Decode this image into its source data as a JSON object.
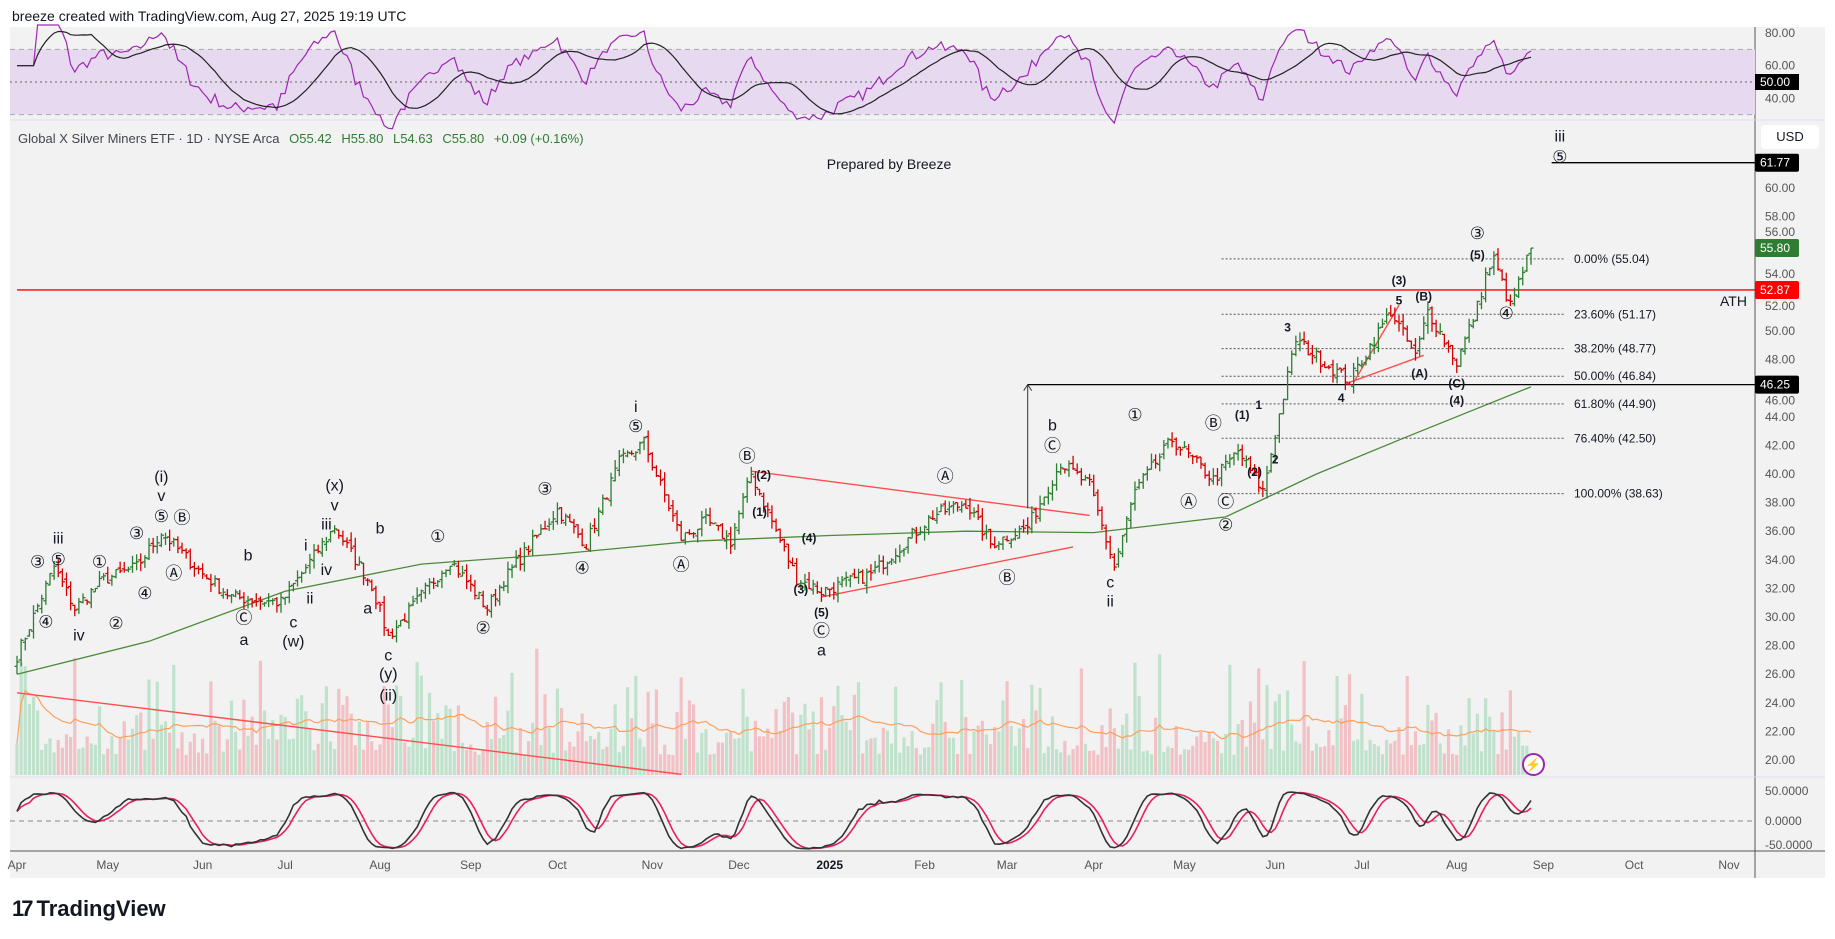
{
  "header": {
    "credit": "breeze created with TradingView.com, Aug 27, 2025 19:19 UTC"
  },
  "brand": {
    "name": "TradingView",
    "logo_icon": "tradingview-logo-icon"
  },
  "symbol": {
    "name": "Global X Silver Miners ETF · 1D · NYSE Arca",
    "open": "O55.42",
    "high": "H55.80",
    "low": "L54.63",
    "close": "C55.80",
    "change": "+0.09 (+0.16%)"
  },
  "currency_button": "USD",
  "note": "Prepared by Breeze",
  "colors": {
    "up": "#2e7d32",
    "down": "#d50000",
    "sma": "#4c8a3a",
    "rsi": "#9c27b0",
    "rsi_band": "#e6d9f0",
    "fib": "#555555",
    "ath": "#ff0000",
    "volume_ma": "#ff9f5a",
    "osc_k": "#333333",
    "osc_d": "#e91e63"
  },
  "chart_data": {
    "type": "ohlc-bar",
    "price_axis": {
      "ticks": [
        "60.00",
        "58.00",
        "56.00",
        "54.00",
        "52.00",
        "50.00",
        "48.00",
        "46.00",
        "44.00",
        "42.00",
        "40.00",
        "38.00",
        "36.00",
        "34.00",
        "32.00",
        "30.00",
        "28.00",
        "26.00",
        "24.00",
        "22.00",
        "20.00"
      ],
      "range": [
        19.5,
        63.8
      ]
    },
    "price_badges": [
      {
        "label": "61.77",
        "value": 61.77,
        "color": "#000000"
      },
      {
        "label": "55.80",
        "value": 55.8,
        "color": "#2e7d32"
      },
      {
        "label": "52.87",
        "value": 52.87,
        "color": "#ff0000"
      },
      {
        "label": "46.25",
        "value": 46.25,
        "color": "#000000"
      }
    ],
    "x_axis": {
      "ticks": [
        "Apr",
        "May",
        "Jun",
        "Jul",
        "Aug",
        "Sep",
        "Oct",
        "Nov",
        "Dec",
        "2025",
        "Feb",
        "Mar",
        "Apr",
        "May",
        "Jun",
        "Jul",
        "Aug",
        "Sep",
        "Oct",
        "Nov"
      ],
      "start": "2024-04-01",
      "end": "2025-08-27"
    },
    "last_bar": {
      "date": "2025-08-27",
      "open": 55.42,
      "high": 55.8,
      "low": 54.63,
      "close": 55.8
    },
    "close_path": [
      [
        "2024-04-01",
        27.3
      ],
      [
        "2024-04-12",
        33.5
      ],
      [
        "2024-04-19",
        30.6
      ],
      [
        "2024-04-30",
        32.6
      ],
      [
        "2024-05-10",
        33.5
      ],
      [
        "2024-05-20",
        35.9
      ],
      [
        "2024-06-03",
        33.0
      ],
      [
        "2024-06-12",
        31.4
      ],
      [
        "2024-06-28",
        31.0
      ],
      [
        "2024-07-17",
        36.3
      ],
      [
        "2024-07-30",
        32.2
      ],
      [
        "2024-08-05",
        28.6
      ],
      [
        "2024-08-26",
        34.0
      ],
      [
        "2024-09-06",
        30.6
      ],
      [
        "2024-09-12",
        32.6
      ],
      [
        "2024-10-01",
        37.5
      ],
      [
        "2024-10-10",
        35.1
      ],
      [
        "2024-10-22",
        40.8
      ],
      [
        "2024-10-30",
        42.2
      ],
      [
        "2024-11-12",
        35.5
      ],
      [
        "2024-11-20",
        36.7
      ],
      [
        "2024-11-28",
        35.3
      ],
      [
        "2024-12-05",
        40.0
      ],
      [
        "2024-12-20",
        32.7
      ],
      [
        "2024-12-30",
        31.8
      ],
      [
        "2025-01-15",
        33.0
      ],
      [
        "2025-02-05",
        37.1
      ],
      [
        "2025-02-15",
        38.0
      ],
      [
        "2025-02-25",
        35.1
      ],
      [
        "2025-03-10",
        36.3
      ],
      [
        "2025-03-20",
        40.8
      ],
      [
        "2025-03-31",
        39.2
      ],
      [
        "2025-04-08",
        33.5
      ],
      [
        "2025-04-15",
        38.8
      ],
      [
        "2025-04-28",
        42.4
      ],
      [
        "2025-05-10",
        39.6
      ],
      [
        "2025-05-20",
        41.6
      ],
      [
        "2025-05-28",
        38.8
      ],
      [
        "2025-06-05",
        46.8
      ],
      [
        "2025-06-09",
        49.4
      ],
      [
        "2025-06-16",
        48.2
      ],
      [
        "2025-06-26",
        46.5
      ],
      [
        "2025-07-10",
        51.4
      ],
      [
        "2025-07-18",
        48.2
      ],
      [
        "2025-07-23",
        51.4
      ],
      [
        "2025-08-01",
        47.8
      ],
      [
        "2025-08-08",
        51.7
      ],
      [
        "2025-08-12",
        53.9
      ],
      [
        "2025-08-14",
        55.0
      ],
      [
        "2025-08-20",
        51.7
      ],
      [
        "2025-08-27",
        55.8
      ]
    ],
    "sma_path": [
      [
        "2024-04-01",
        26.0
      ],
      [
        "2024-05-15",
        28.3
      ],
      [
        "2024-07-01",
        31.8
      ],
      [
        "2024-08-15",
        33.7
      ],
      [
        "2024-10-01",
        34.4
      ],
      [
        "2024-11-15",
        35.3
      ],
      [
        "2025-01-01",
        35.7
      ],
      [
        "2025-02-15",
        36.0
      ],
      [
        "2025-04-01",
        35.9
      ],
      [
        "2025-05-15",
        37.0
      ],
      [
        "2025-06-15",
        40.0
      ],
      [
        "2025-07-15",
        42.5
      ],
      [
        "2025-08-27",
        46.1
      ]
    ],
    "horizontal_lines": [
      {
        "label": "ATH",
        "value": 52.87,
        "from": "2024-04-01",
        "color": "#ff0000"
      },
      {
        "label": "",
        "value": 46.25,
        "from": "2025-03-10",
        "color": "#000000"
      },
      {
        "label": "",
        "value": 61.77,
        "from": "2025-09-03",
        "color": "#000000"
      }
    ],
    "fibonacci": {
      "from": "2025-05-14",
      "to": "2025-09-08",
      "levels": [
        {
          "label": "0.00% (55.04)",
          "value": 55.04
        },
        {
          "label": "23.60% (51.17)",
          "value": 51.17
        },
        {
          "label": "38.20% (48.77)",
          "value": 48.77
        },
        {
          "label": "50.00% (46.84)",
          "value": 46.84
        },
        {
          "label": "61.80% (44.90)",
          "value": 44.9
        },
        {
          "label": "76.40% (42.50)",
          "value": 42.5
        },
        {
          "label": "100.00% (38.63)",
          "value": 38.63
        }
      ]
    },
    "trendlines": [
      {
        "from": [
          "2024-04-01",
          24.7
        ],
        "to": [
          "2024-11-12",
          19.0
        ]
      },
      {
        "from": [
          "2024-12-05",
          40.2
        ],
        "to": [
          "2025-03-31",
          37.1
        ]
      },
      {
        "from": [
          "2024-12-28",
          31.4
        ],
        "to": [
          "2025-03-25",
          34.9
        ]
      },
      {
        "from": [
          "2025-06-27",
          46.4
        ],
        "to": [
          "2025-07-14",
          51.8
        ]
      },
      {
        "from": [
          "2025-06-25",
          46.3
        ],
        "to": [
          "2025-07-22",
          48.3
        ]
      }
    ],
    "arrow": {
      "from": [
        "2025-03-10",
        37.6
      ],
      "to": [
        "2025-03-10",
        46.25
      ]
    },
    "annotations": [
      {
        "t": "③",
        "d": "2024-04-08",
        "p": 33.8
      },
      {
        "t": "iii",
        "d": "2024-04-13",
        "p": 35.5
      },
      {
        "t": "⑤",
        "d": "2024-04-14",
        "p": 34.0
      },
      {
        "t": "④",
        "d": "2024-04-10",
        "p": 29.6
      },
      {
        "t": "iv",
        "d": "2024-04-21",
        "p": 28.7
      },
      {
        "t": "①",
        "d": "2024-04-28",
        "p": 33.8
      },
      {
        "t": "②",
        "d": "2024-05-03",
        "p": 29.5
      },
      {
        "t": "③",
        "d": "2024-05-10",
        "p": 35.8
      },
      {
        "t": "④",
        "d": "2024-05-14",
        "p": 31.6
      },
      {
        "t": "(i)",
        "d": "2024-05-18",
        "p": 39.8
      },
      {
        "t": "v",
        "d": "2024-05-18",
        "p": 38.6
      },
      {
        "t": "⑤",
        "d": "2024-05-18",
        "p": 37.3
      },
      {
        "t": "Ⓑ",
        "d": "2024-05-25",
        "p": 36.9
      },
      {
        "t": "Ⓐ",
        "d": "2024-05-23",
        "p": 33.0
      },
      {
        "t": "b",
        "d": "2024-06-18",
        "p": 34.3
      },
      {
        "t": "Ⓒ",
        "d": "2024-06-15",
        "p": 29.9
      },
      {
        "t": "a",
        "d": "2024-06-15",
        "p": 28.4
      },
      {
        "t": "i",
        "d": "2024-07-06",
        "p": 35.0
      },
      {
        "t": "ii",
        "d": "2024-07-09",
        "p": 31.3
      },
      {
        "t": "iii",
        "d": "2024-07-13",
        "p": 37.4
      },
      {
        "t": "(x)",
        "d": "2024-07-17",
        "p": 39.2
      },
      {
        "t": "v",
        "d": "2024-07-17",
        "p": 37.8
      },
      {
        "t": "iv",
        "d": "2024-07-15",
        "p": 33.3
      },
      {
        "t": "c",
        "d": "2024-07-03",
        "p": 29.6
      },
      {
        "t": "(w)",
        "d": "2024-07-03",
        "p": 28.5
      },
      {
        "t": "b",
        "d": "2024-08-01",
        "p": 36.2
      },
      {
        "t": "a",
        "d": "2024-07-28",
        "p": 30.6
      },
      {
        "t": "c",
        "d": "2024-08-04",
        "p": 27.3
      },
      {
        "t": "(y)",
        "d": "2024-08-04",
        "p": 26.0
      },
      {
        "t": "(ii)",
        "d": "2024-08-04",
        "p": 24.5
      },
      {
        "t": "①",
        "d": "2024-08-21",
        "p": 35.6
      },
      {
        "t": "②",
        "d": "2024-09-05",
        "p": 29.2
      },
      {
        "t": "③",
        "d": "2024-09-26",
        "p": 38.9
      },
      {
        "t": "④",
        "d": "2024-10-09",
        "p": 33.4
      },
      {
        "t": "i",
        "d": "2024-10-28",
        "p": 44.7
      },
      {
        "t": "⑤",
        "d": "2024-10-28",
        "p": 43.3
      },
      {
        "t": "Ⓐ",
        "d": "2024-11-12",
        "p": 33.6
      },
      {
        "t": "Ⓑ",
        "d": "2024-12-04",
        "p": 41.2
      },
      {
        "t": "(2)",
        "d": "2024-12-10",
        "p": 40.6,
        "b": 1
      },
      {
        "t": "(1)",
        "d": "2024-12-07",
        "p": 37.4,
        "b": 1
      },
      {
        "t": "(4)",
        "d": "2024-12-25",
        "p": 35.6,
        "b": 1
      },
      {
        "t": "(3)",
        "d": "2024-12-22",
        "p": 32.0,
        "b": 1
      },
      {
        "t": "(5)",
        "d": "2024-12-28",
        "p": 30.4,
        "b": 1
      },
      {
        "t": "Ⓒ",
        "d": "2024-12-28",
        "p": 29.5
      },
      {
        "t": "a",
        "d": "2024-12-28",
        "p": 28.5
      },
      {
        "t": "Ⓐ",
        "d": "2025-02-08",
        "p": 39.8
      },
      {
        "t": "Ⓑ",
        "d": "2025-03-01",
        "p": 32.7
      },
      {
        "t": "b",
        "d": "2025-03-18",
        "p": 43.4
      },
      {
        "t": "Ⓒ",
        "d": "2025-03-18",
        "p": 42.4
      },
      {
        "t": "c",
        "d": "2025-04-06",
        "p": 32.4
      },
      {
        "t": "ii",
        "d": "2025-04-06",
        "p": 31.7
      },
      {
        "t": "①",
        "d": "2025-04-15",
        "p": 44.1
      },
      {
        "t": "Ⓐ",
        "d": "2025-05-02",
        "p": 38.0
      },
      {
        "t": "Ⓑ",
        "d": "2025-05-10",
        "p": 43.5
      },
      {
        "t": "Ⓒ",
        "d": "2025-05-15",
        "p": 38.0
      },
      {
        "t": "②",
        "d": "2025-05-15",
        "p": 36.4
      },
      {
        "t": "1",
        "d": "2025-05-27",
        "p": 44.9,
        "b": 1
      },
      {
        "t": "(1)",
        "d": "2025-05-21",
        "p": 44.2,
        "b": 1
      },
      {
        "t": "2",
        "d": "2025-06-01",
        "p": 41.1,
        "b": 1
      },
      {
        "t": "(2)",
        "d": "2025-05-26",
        "p": 40.2,
        "b": 1
      },
      {
        "t": "3",
        "d": "2025-06-05",
        "p": 50.3,
        "b": 1
      },
      {
        "t": "4",
        "d": "2025-06-24",
        "p": 45.4,
        "b": 1
      },
      {
        "t": "(3)",
        "d": "2025-07-13",
        "p": 53.6,
        "b": 1
      },
      {
        "t": "5",
        "d": "2025-07-13",
        "p": 52.2,
        "b": 1
      },
      {
        "t": "(B)",
        "d": "2025-07-22",
        "p": 52.5,
        "b": 1
      },
      {
        "t": "(A)",
        "d": "2025-07-20",
        "p": 47.1,
        "b": 1
      },
      {
        "t": "(C)",
        "d": "2025-08-01",
        "p": 46.4,
        "b": 1
      },
      {
        "t": "(4)",
        "d": "2025-08-01",
        "p": 45.2,
        "b": 1
      },
      {
        "t": "③",
        "d": "2025-08-08",
        "p": 56.8
      },
      {
        "t": "(5)",
        "d": "2025-08-08",
        "p": 55.4,
        "b": 1
      },
      {
        "t": "④",
        "d": "2025-08-19",
        "p": 51.2
      },
      {
        "t": "iii",
        "d": "2025-09-05",
        "p": 63.6
      },
      {
        "t": "⑤",
        "d": "2025-09-05",
        "p": 62.3
      }
    ],
    "rsi": {
      "axis_ticks": [
        "80.00",
        "60.00",
        "40.00"
      ],
      "badge": "50.00",
      "bands": [
        70,
        50,
        30
      ]
    },
    "oscillator": {
      "axis_ticks": [
        "50.0000",
        "0.0000",
        "-50.0000"
      ]
    },
    "volume": {
      "shown": true,
      "ma_shown": true
    },
    "grid": false
  }
}
